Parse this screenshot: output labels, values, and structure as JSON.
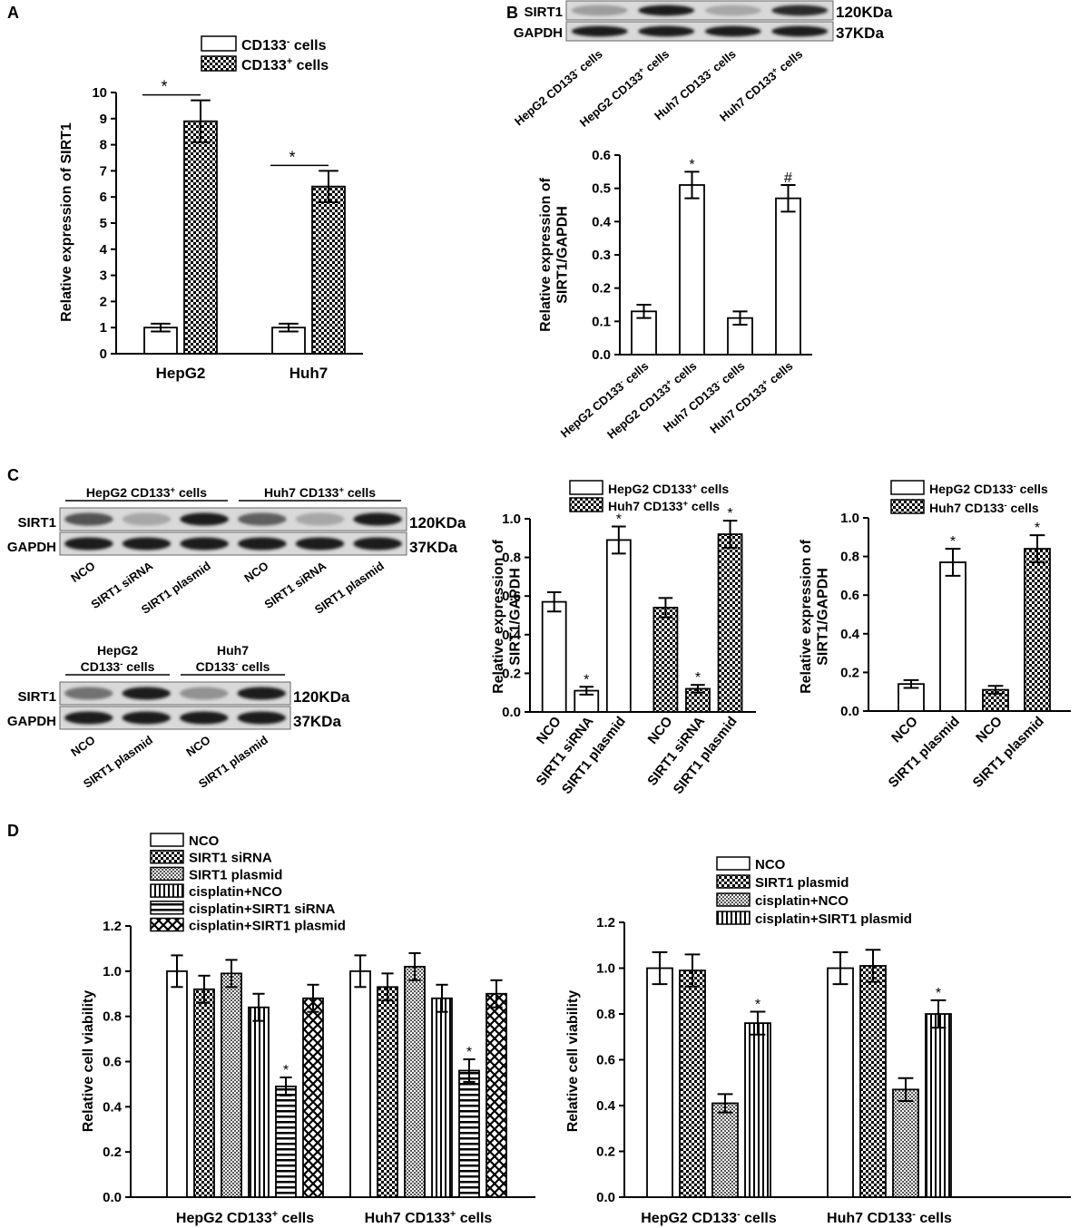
{
  "panel_labels": {
    "a": "A",
    "b": "B",
    "c": "C",
    "d": "D"
  },
  "blots": {
    "b": {
      "rows": [
        "SIRT1",
        "GAPDH"
      ],
      "sizes": [
        "120KDa",
        "37KDa"
      ],
      "lanes": [
        {
          "t": "HepG2 CD133",
          "s": "-",
          "u": " cells"
        },
        {
          "t": "HepG2 CD133",
          "s": "+",
          "u": " cells"
        },
        {
          "t": "Huh7 CD133",
          "s": "-",
          "u": " cells"
        },
        {
          "t": "Huh7 CD133",
          "s": "+",
          "u": " cells"
        }
      ],
      "intensity": [
        [
          0.35,
          0.95,
          0.3,
          0.9
        ],
        [
          0.95,
          0.95,
          0.95,
          0.95
        ]
      ]
    },
    "c1": {
      "rows": [
        "SIRT1",
        "GAPDH"
      ],
      "sizes": [
        "120KDa",
        "37KDa"
      ],
      "groups": [
        {
          "t": "HepG2 CD133",
          "s": "+",
          "u": " cells"
        },
        {
          "t": "Huh7 CD133",
          "s": "+",
          "u": " cells"
        }
      ],
      "lanes": [
        "NCO",
        "SIRT1 siRNA",
        "SIRT1 plasmid",
        "NCO",
        "SIRT1 siRNA",
        "SIRT1 plasmid"
      ],
      "intensity": [
        [
          0.7,
          0.3,
          0.95,
          0.65,
          0.3,
          0.95
        ],
        [
          0.95,
          0.95,
          0.95,
          0.95,
          0.95,
          0.95
        ]
      ]
    },
    "c2": {
      "rows": [
        "SIRT1",
        "GAPDH"
      ],
      "sizes": [
        "120KDa",
        "37KDa"
      ],
      "groups": [
        {
          "t": "HepG2",
          "t2": "CD133",
          "s": "-",
          "u": " cells"
        },
        {
          "t": "Huh7",
          "t2": "CD133",
          "s": "-",
          "u": " cells"
        }
      ],
      "lanes": [
        "NCO",
        "SIRT1 plasmid",
        "NCO",
        "SIRT1 plasmid"
      ],
      "intensity": [
        [
          0.55,
          0.95,
          0.4,
          0.95
        ],
        [
          0.95,
          0.95,
          0.95,
          0.95
        ]
      ]
    }
  },
  "chart_data": [
    {
      "id": "A",
      "type": "bar",
      "categories": [
        "HepG2",
        "Huh7"
      ],
      "series": [
        {
          "name": [
            {
              "t": "CD133",
              "s": "-",
              "u": " cells"
            }
          ],
          "pattern": "white",
          "values": [
            1.0,
            1.0
          ],
          "errors": [
            0.15,
            0.15
          ]
        },
        {
          "name": [
            {
              "t": "CD133",
              "s": "+",
              "u": " cells"
            }
          ],
          "pattern": "check",
          "values": [
            8.9,
            6.4
          ],
          "errors": [
            0.8,
            0.6
          ]
        }
      ],
      "ylabel": "Relative expression of SIRT1",
      "ylim": [
        0,
        10
      ],
      "yticks": [
        0,
        1,
        2,
        3,
        4,
        5,
        6,
        7,
        8,
        9,
        10
      ],
      "sig": [
        {
          "cat": 0,
          "label": "*"
        },
        {
          "cat": 1,
          "label": "*"
        }
      ],
      "legend": "top"
    },
    {
      "id": "B",
      "type": "bar",
      "categories": [
        {
          "t": "HepG2 CD133",
          "s": "-",
          "u": " cells"
        },
        {
          "t": "HepG2 CD133",
          "s": "+",
          "u": " cells"
        },
        {
          "t": "Huh7 CD133",
          "s": "-",
          "u": " cells"
        },
        {
          "t": "Huh7 CD133",
          "s": "+",
          "u": " cells"
        }
      ],
      "values": [
        0.13,
        0.51,
        0.11,
        0.47
      ],
      "errors": [
        0.02,
        0.04,
        0.02,
        0.04
      ],
      "marks": [
        "",
        "*",
        "",
        "#"
      ],
      "ylabel": [
        "Relative expression of",
        "SIRT1/GAPDH"
      ],
      "ylim": [
        0,
        0.6
      ],
      "yticks": [
        0.0,
        0.1,
        0.2,
        0.3,
        0.4,
        0.5,
        0.6
      ]
    },
    {
      "id": "C1",
      "type": "bar",
      "categories": [
        "NCO",
        "SIRT1 siRNA",
        "SIRT1 plasmid"
      ],
      "series": [
        {
          "name": [
            {
              "t": "HepG2 CD133",
              "s": "+",
              "u": " cells"
            }
          ],
          "pattern": "white",
          "values": [
            0.57,
            0.11,
            0.89
          ],
          "errors": [
            0.05,
            0.02,
            0.07
          ],
          "marks": [
            "",
            "*",
            "*"
          ]
        },
        {
          "name": [
            {
              "t": "Huh7 CD133",
              "s": "+",
              "u": " cells"
            }
          ],
          "pattern": "check",
          "values": [
            0.54,
            0.12,
            0.92
          ],
          "errors": [
            0.05,
            0.02,
            0.07
          ],
          "marks": [
            "",
            "*",
            "*"
          ]
        }
      ],
      "ylabel": [
        "Relative expression of",
        "SIRT1/GAPDH"
      ],
      "ylim": [
        0,
        1.0
      ],
      "yticks": [
        0.0,
        0.2,
        0.4,
        0.6,
        0.8,
        1.0
      ],
      "legend": "top"
    },
    {
      "id": "C2",
      "type": "bar",
      "categories": [
        "NCO",
        "SIRT1 plasmid"
      ],
      "series": [
        {
          "name": [
            {
              "t": "HepG2 CD133",
              "s": "-",
              "u": " cells"
            }
          ],
          "pattern": "white",
          "values": [
            0.14,
            0.77
          ],
          "errors": [
            0.02,
            0.07
          ],
          "marks": [
            "",
            "*"
          ]
        },
        {
          "name": [
            {
              "t": "Huh7 CD133",
              "s": "-",
              "u": " cells"
            }
          ],
          "pattern": "check",
          "values": [
            0.11,
            0.84
          ],
          "errors": [
            0.02,
            0.07
          ],
          "marks": [
            "",
            "*"
          ]
        }
      ],
      "ylabel": [
        "Relative expression of",
        "SIRT1/GAPDH"
      ],
      "ylim": [
        0,
        1.0
      ],
      "yticks": [
        0.0,
        0.2,
        0.4,
        0.6,
        0.8,
        1.0
      ],
      "legend": "top"
    },
    {
      "id": "D1",
      "type": "bar",
      "categories": [
        {
          "t": "HepG2 CD133",
          "s": "+",
          "u": " cells"
        },
        {
          "t": "Huh7 CD133",
          "s": "+",
          "u": " cells"
        }
      ],
      "series": [
        {
          "name": "NCO",
          "pattern": "white",
          "values": [
            1.0,
            1.0
          ],
          "errors": [
            0.07,
            0.07
          ]
        },
        {
          "name": "SIRT1 siRNA",
          "pattern": "check",
          "values": [
            0.92,
            0.93
          ],
          "errors": [
            0.06,
            0.06
          ]
        },
        {
          "name": "SIRT1 plasmid",
          "pattern": "dots",
          "values": [
            0.99,
            1.02
          ],
          "errors": [
            0.06,
            0.06
          ]
        },
        {
          "name": "cisplatin+NCO",
          "pattern": "vlines",
          "values": [
            0.84,
            0.88
          ],
          "errors": [
            0.06,
            0.06
          ]
        },
        {
          "name": "cisplatin+SIRT1 siRNA",
          "pattern": "hlines",
          "values": [
            0.49,
            0.56
          ],
          "errors": [
            0.04,
            0.05
          ],
          "marks": [
            "*",
            "*"
          ]
        },
        {
          "name": "cisplatin+SIRT1 plasmid",
          "pattern": "cross",
          "values": [
            0.88,
            0.9
          ],
          "errors": [
            0.06,
            0.06
          ]
        }
      ],
      "ylabel": "Relative cell viability",
      "ylim": [
        0,
        1.2
      ],
      "yticks": [
        0.0,
        0.2,
        0.4,
        0.6,
        0.8,
        1.0,
        1.2
      ],
      "legend": "top"
    },
    {
      "id": "D2",
      "type": "bar",
      "categories": [
        {
          "t": "HepG2 CD133",
          "s": "-",
          "u": " cells"
        },
        {
          "t": "Huh7 CD133",
          "s": "-",
          "u": " cells"
        }
      ],
      "series": [
        {
          "name": "NCO",
          "pattern": "white",
          "values": [
            1.0,
            1.0
          ],
          "errors": [
            0.07,
            0.07
          ]
        },
        {
          "name": "SIRT1 plasmid",
          "pattern": "check",
          "values": [
            0.99,
            1.01
          ],
          "errors": [
            0.07,
            0.07
          ]
        },
        {
          "name": "cisplatin+NCO",
          "pattern": "dots",
          "values": [
            0.41,
            0.47
          ],
          "errors": [
            0.04,
            0.05
          ]
        },
        {
          "name": "cisplatin+SIRT1 plasmid",
          "pattern": "vlines",
          "values": [
            0.76,
            0.8
          ],
          "errors": [
            0.05,
            0.06
          ],
          "marks": [
            "*",
            "*"
          ]
        }
      ],
      "ylabel": "Relative cell viability",
      "ylim": [
        0,
        1.2
      ],
      "yticks": [
        0.0,
        0.2,
        0.4,
        0.6,
        0.8,
        1.0,
        1.2
      ],
      "legend": "top"
    }
  ]
}
